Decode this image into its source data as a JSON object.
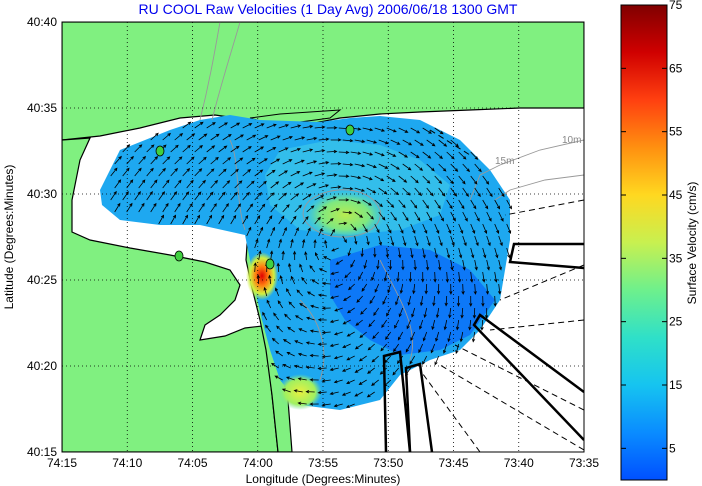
{
  "chart_data": {
    "type": "heatmap",
    "title": "RU COOL Raw Velocities (1 Day Avg) 2006/06/18 1300 GMT",
    "xlabel": "Longitude (Degrees:Minutes)",
    "ylabel": "Latitude (Degrees:Minutes)",
    "x_ticks": [
      "74:15",
      "74:10",
      "74:05",
      "74:00",
      "73:55",
      "73:50",
      "73:45",
      "73:40",
      "73:35"
    ],
    "y_ticks": [
      "40:15",
      "40:20",
      "40:25",
      "40:30",
      "40:35",
      "40:40"
    ],
    "xlim": [
      -74.25,
      -73.5833
    ],
    "ylim": [
      40.25,
      40.6667
    ],
    "grid": true,
    "colorbar": {
      "label": "Surface Velocity (cm/s)",
      "ticks": [
        5,
        15,
        25,
        35,
        45,
        55,
        65,
        75
      ],
      "range": [
        0,
        75
      ],
      "colors": [
        "#0050ff",
        "#0a8cff",
        "#16c4f0",
        "#2fe0c8",
        "#6ef08c",
        "#c8f050",
        "#ffd820",
        "#ff9010",
        "#ff4010",
        "#d00000",
        "#800000"
      ]
    },
    "contour_labels": [
      "10m",
      "15m"
    ],
    "land_color": "#80f080",
    "field_peak_label": "max ≈ 60 cm/s near 74:00, 40:25"
  }
}
